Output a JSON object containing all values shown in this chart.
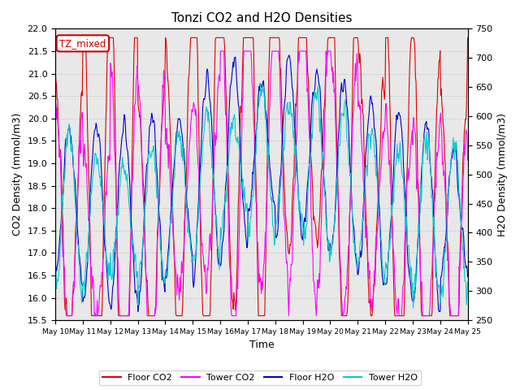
{
  "title": "Tonzi CO2 and H2O Densities",
  "xlabel": "Time",
  "ylabel_left": "CO2 Density (mmol/m3)",
  "ylabel_right": "H2O Density (mmol/m3)",
  "ylim_left": [
    15.5,
    22.0
  ],
  "ylim_right": [
    250,
    750
  ],
  "annotation_text": "TZ_mixed",
  "annotation_color": "#cc0000",
  "annotation_bg": "white",
  "annotation_border": "#cc0000",
  "colors": {
    "floor_co2": "#dd0000",
    "tower_co2": "#ff00ff",
    "floor_h2o": "#0000cc",
    "tower_h2o": "#00cccc"
  },
  "legend": [
    "Floor CO2",
    "Tower CO2",
    "Floor H2O",
    "Tower H2O"
  ],
  "n_days": 15,
  "seed": 7
}
